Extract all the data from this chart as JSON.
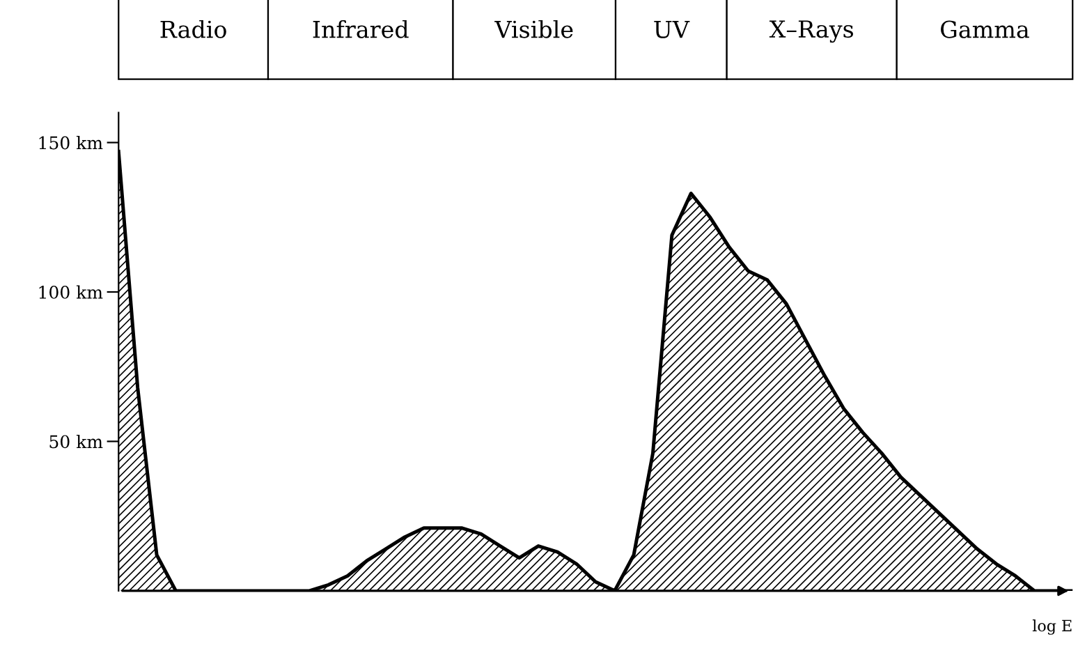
{
  "chart_data": {
    "type": "area",
    "xlabel": "log E",
    "color": "#000000",
    "categories": [
      null,
      null,
      null,
      null,
      null,
      null,
      null,
      null,
      null,
      null,
      null,
      null,
      null,
      null,
      null,
      null,
      null,
      null,
      null,
      null,
      null,
      null,
      null,
      null,
      null,
      null,
      null,
      null,
      null,
      null,
      null,
      null,
      null,
      null,
      null,
      null,
      null,
      null,
      null,
      null,
      null,
      null,
      null,
      null,
      null,
      null,
      null,
      null,
      null,
      null,
      null
    ],
    "values": [
      147,
      68,
      12,
      0,
      0,
      0,
      0,
      0,
      0,
      0,
      0,
      2,
      5,
      10,
      14,
      18,
      21,
      21,
      21,
      19,
      15,
      11,
      15,
      13,
      9,
      3,
      0,
      12,
      46,
      119,
      133,
      125,
      115,
      107,
      104,
      96,
      84,
      72,
      61,
      53,
      46,
      38,
      32,
      26,
      20,
      14,
      9,
      5,
      0,
      0,
      0
    ],
    "ylim": [
      0,
      160
    ],
    "yticks": [
      {
        "value": 50,
        "label": "50 km"
      },
      {
        "value": 100,
        "label": "100 km"
      },
      {
        "value": 150,
        "label": "150 km"
      }
    ],
    "tick_labels": "y",
    "grid": false,
    "legend": false,
    "annotations": [
      "Radio",
      "Infrared",
      "Visible",
      "UV",
      "X–Rays",
      "Gamma"
    ]
  }
}
